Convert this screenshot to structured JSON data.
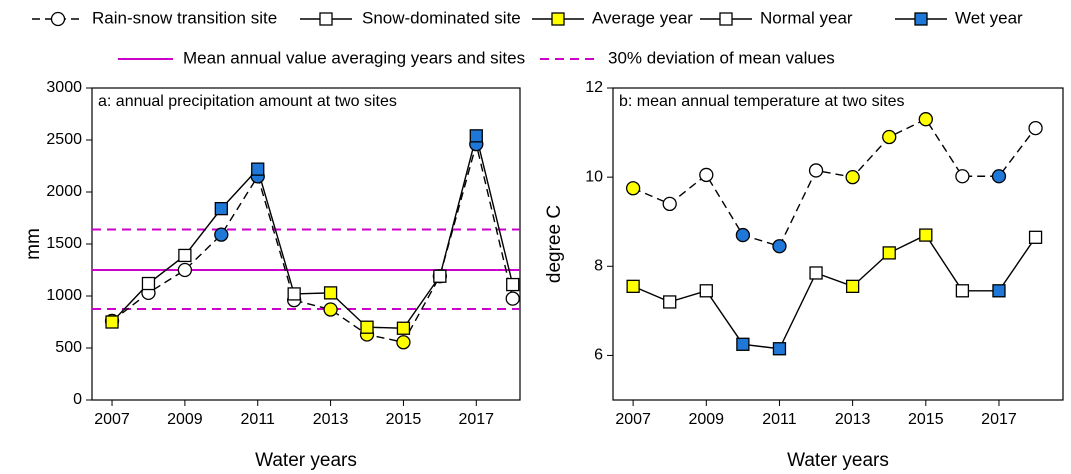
{
  "chart_data": [
    {
      "type": "line",
      "title": "a: annual precipitation amount at two sites",
      "xlabel": "Water years",
      "ylabel": "mm",
      "x": [
        2007,
        2008,
        2009,
        2010,
        2011,
        2012,
        2013,
        2014,
        2015,
        2016,
        2017,
        2018
      ],
      "series": [
        {
          "name": "Rain-snow transition site",
          "marker": "circle",
          "line": "dashed",
          "color": "#000000",
          "values": [
            760,
            1030,
            1250,
            1590,
            2150,
            960,
            870,
            630,
            555,
            1190,
            2460,
            975
          ],
          "point_colors": [
            "#ffff00",
            "#ffffff",
            "#ffffff",
            "#1f78d8",
            "#1f78d8",
            "#ffffff",
            "#ffff00",
            "#ffff00",
            "#ffff00",
            "#ffffff",
            "#1f78d8",
            "#ffffff"
          ]
        },
        {
          "name": "Snow-dominated site",
          "marker": "square",
          "line": "solid",
          "color": "#000000",
          "values": [
            750,
            1120,
            1390,
            1840,
            2220,
            1020,
            1030,
            700,
            690,
            1190,
            2540,
            1110
          ],
          "point_colors": [
            "#ffff00",
            "#ffffff",
            "#ffffff",
            "#1f78d8",
            "#1f78d8",
            "#ffffff",
            "#ffff00",
            "#ffff00",
            "#ffff00",
            "#ffffff",
            "#1f78d8",
            "#ffffff"
          ]
        }
      ],
      "year_types": [
        {
          "name": "Average year",
          "color": "#ffff00"
        },
        {
          "name": "Normal year",
          "color": "#ffffff"
        },
        {
          "name": "Wet year",
          "color": "#1f78d8"
        }
      ],
      "ref_lines": [
        {
          "name": "Mean annual value averaging years and sites",
          "values": [
            1250
          ],
          "line": "solid",
          "color": "#cc00cc"
        },
        {
          "name": "30% deviation of mean values",
          "values": [
            875,
            1640
          ],
          "line": "dashed",
          "color": "#cc00cc"
        }
      ],
      "xlim": [
        2006.45,
        2018.2
      ],
      "xticks": [
        2007,
        2009,
        2011,
        2013,
        2015,
        2017
      ],
      "ylim": [
        0,
        3000
      ],
      "yticks": [
        0,
        500,
        1000,
        1500,
        2000,
        2500,
        3000
      ]
    },
    {
      "type": "line",
      "title": "b: mean annual temperature at two sites",
      "xlabel": "Water years",
      "ylabel": "degree C",
      "x": [
        2007,
        2008,
        2009,
        2010,
        2011,
        2012,
        2013,
        2014,
        2015,
        2016,
        2017,
        2018
      ],
      "series": [
        {
          "marker": "circle",
          "line": "dashed",
          "color": "#000000",
          "values": [
            9.75,
            9.4,
            10.05,
            8.7,
            8.45,
            10.15,
            10.0,
            10.9,
            11.3,
            10.02,
            10.02,
            11.1
          ],
          "point_colors": [
            "#ffff00",
            "#ffffff",
            "#ffffff",
            "#1f78d8",
            "#1f78d8",
            "#ffffff",
            "#ffff00",
            "#ffff00",
            "#ffff00",
            "#ffffff",
            "#1f78d8",
            "#ffffff"
          ]
        },
        {
          "marker": "square",
          "line": "solid",
          "color": "#000000",
          "values": [
            7.55,
            7.2,
            7.45,
            6.25,
            6.15,
            7.85,
            7.55,
            8.3,
            8.7,
            7.45,
            7.45,
            8.65
          ],
          "point_colors": [
            "#ffff00",
            "#ffffff",
            "#ffffff",
            "#1f78d8",
            "#1f78d8",
            "#ffffff",
            "#ffff00",
            "#ffff00",
            "#ffff00",
            "#ffffff",
            "#1f78d8",
            "#ffffff"
          ]
        }
      ],
      "xlim": [
        2006.45,
        2018.75
      ],
      "xticks": [
        2007,
        2009,
        2011,
        2013,
        2015,
        2017
      ],
      "ylim": [
        5,
        12
      ],
      "yticks": [
        6,
        8,
        10,
        12
      ]
    }
  ]
}
